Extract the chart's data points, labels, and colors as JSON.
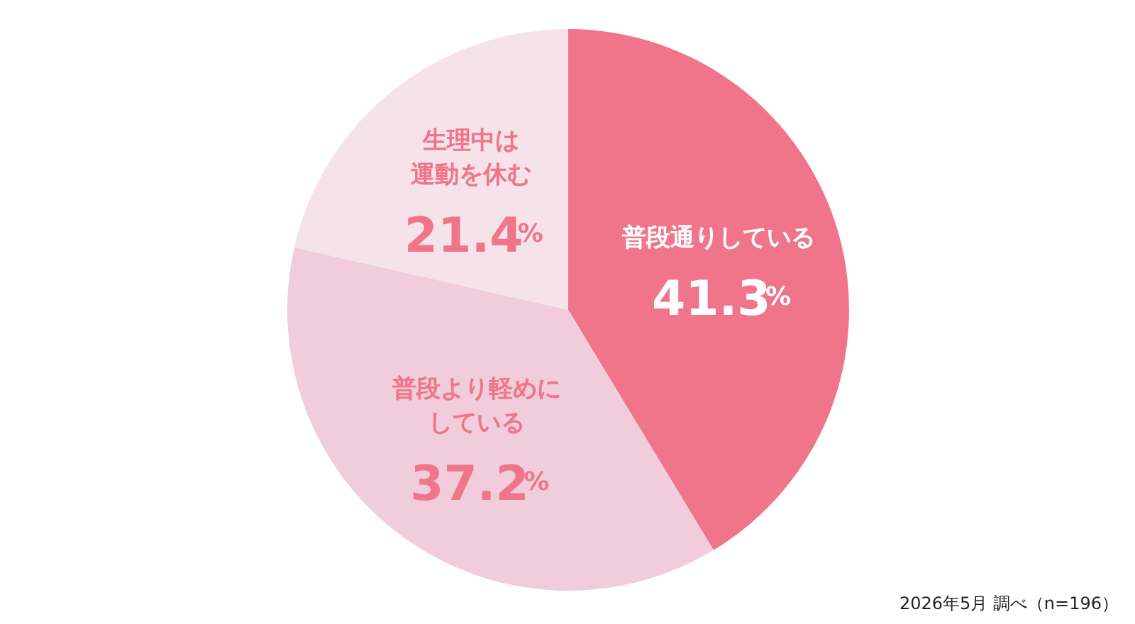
{
  "chart_data": {
    "type": "pie",
    "categories": [
      "普段通りしている",
      "普段より軽めにしている",
      "生理中は運動を休む"
    ],
    "values": [
      41.3,
      37.2,
      21.4
    ],
    "colors": [
      "#f0758a",
      "#f1cddb",
      "#f5e3e9"
    ],
    "value_labels": [
      "41.3%",
      "37.2%",
      "21.4%"
    ],
    "annotations": [
      "2026年5月 調べ（n=196）"
    ]
  }
}
